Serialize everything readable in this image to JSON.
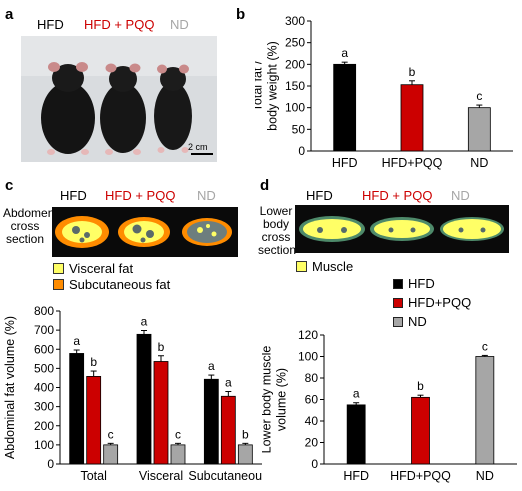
{
  "colors": {
    "hfd": "#000000",
    "hfd_pqq": "#cc0000",
    "nd": "#a6a6a6",
    "visceral_fat": "#ffff66",
    "subcutaneous_fat": "#ff8c00",
    "muscle": "#ffff66"
  },
  "panel_a": {
    "letter": "a",
    "labels": {
      "hfd": "HFD",
      "hfd_pqq": "HFD + PQQ",
      "nd": "ND"
    },
    "scale_bar": "2 cm"
  },
  "panel_c": {
    "letter": "c",
    "row_label": "Abdomen cross section",
    "labels": {
      "hfd": "HFD",
      "hfd_pqq": "HFD + PQQ",
      "nd": "ND"
    },
    "legend": {
      "visceral": "Visceral fat",
      "subcutaneous": "Subcutaneous fat"
    }
  },
  "panel_d": {
    "letter": "d",
    "row_label": "Lower body cross section",
    "labels": {
      "hfd": "HFD",
      "hfd_pqq": "HFD + PQQ",
      "nd": "ND"
    },
    "legend": {
      "muscle": "Muscle"
    },
    "group_legend": [
      "HFD",
      "HFD+PQQ",
      "ND"
    ]
  },
  "chart_data": [
    {
      "id": "b",
      "letter": "b",
      "type": "bar",
      "categories": [
        "HFD",
        "HFD+PQQ",
        "ND"
      ],
      "values": [
        200,
        153,
        100
      ],
      "errors": [
        5,
        9,
        6
      ],
      "significance": [
        "a",
        "b",
        "c"
      ],
      "ylabel": "Total fat / body weight (%)",
      "ylim": [
        0,
        300
      ],
      "yticks": [
        0,
        50,
        100,
        150,
        200,
        250,
        300
      ],
      "colors": [
        "#000000",
        "#cc0000",
        "#a6a6a6"
      ]
    },
    {
      "id": "c",
      "type": "bar",
      "categories": [
        "Total",
        "Visceral",
        "Subcutaneous"
      ],
      "series": [
        {
          "name": "HFD",
          "values": [
            578,
            678,
            443
          ],
          "errors": [
            18,
            20,
            22
          ],
          "significance": [
            "a",
            "a",
            "a"
          ],
          "color": "#000000"
        },
        {
          "name": "HFD+PQQ",
          "values": [
            458,
            536,
            354
          ],
          "errors": [
            28,
            30,
            25
          ],
          "significance": [
            "b",
            "b",
            "a"
          ],
          "color": "#cc0000"
        },
        {
          "name": "ND",
          "values": [
            100,
            100,
            100
          ],
          "errors": [
            8,
            8,
            8
          ],
          "significance": [
            "c",
            "c",
            "b"
          ],
          "color": "#a6a6a6"
        }
      ],
      "ylabel": "Abdominal fat volume (%)",
      "ylim": [
        0,
        800
      ],
      "yticks": [
        0,
        100,
        200,
        300,
        400,
        500,
        600,
        700,
        800
      ]
    },
    {
      "id": "d",
      "type": "bar",
      "categories": [
        "HFD",
        "HFD+PQQ",
        "ND"
      ],
      "values": [
        55,
        62,
        100
      ],
      "errors": [
        2,
        2,
        1
      ],
      "significance": [
        "a",
        "b",
        "c"
      ],
      "ylabel": "Lower body muscle volume (%)",
      "ylim": [
        0,
        120
      ],
      "yticks": [
        0,
        20,
        40,
        60,
        80,
        100,
        120
      ],
      "colors": [
        "#000000",
        "#cc0000",
        "#a6a6a6"
      ]
    }
  ]
}
